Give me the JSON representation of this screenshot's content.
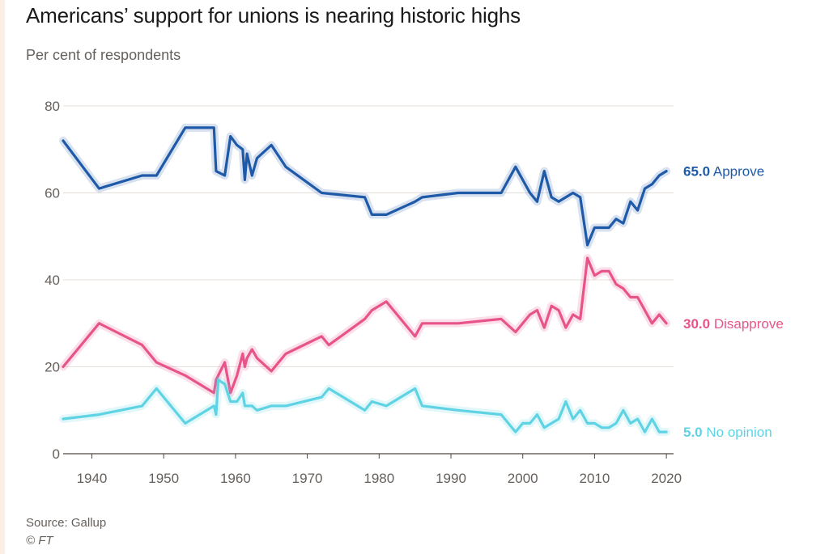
{
  "title": "Americans’ support for unions is nearing historic highs",
  "subtitle": "Per cent of respondents",
  "footer": {
    "source": "Source: Gallup",
    "credit": "© FT"
  },
  "chart_data": {
    "type": "line",
    "title": "Americans’ support for unions is nearing historic highs",
    "ylabel": "Per cent of respondents",
    "xlabel": "",
    "xlim": [
      1936,
      2021
    ],
    "ylim": [
      0,
      80
    ],
    "grid": true,
    "legend": "end-of-line labels (right)",
    "x_ticks": [
      1940,
      1950,
      1960,
      1970,
      1980,
      1990,
      2000,
      2010,
      2020
    ],
    "x_tick_labels": [
      "1940",
      "1950",
      "1960",
      "1970",
      "1980",
      "1990",
      "2000",
      "2010",
      "2020"
    ],
    "y_ticks": [
      0,
      20,
      40,
      60,
      80
    ],
    "y_tick_labels": [
      "0",
      "20",
      "40",
      "60",
      "80"
    ],
    "series": [
      {
        "name": "Approve",
        "end_value": "65.0",
        "color": "#1f5aa8",
        "points": [
          [
            1936,
            72
          ],
          [
            1941,
            61
          ],
          [
            1947,
            64
          ],
          [
            1949,
            64
          ],
          [
            1953,
            75
          ],
          [
            1957,
            75
          ],
          [
            1957.3,
            65
          ],
          [
            1958.5,
            64
          ],
          [
            1959.3,
            73
          ],
          [
            1960.2,
            71
          ],
          [
            1961,
            70
          ],
          [
            1961.3,
            63
          ],
          [
            1961.6,
            69
          ],
          [
            1962.3,
            64
          ],
          [
            1963,
            68
          ],
          [
            1965,
            71
          ],
          [
            1967,
            66
          ],
          [
            1972,
            60
          ],
          [
            1978,
            59
          ],
          [
            1979,
            55
          ],
          [
            1981,
            55
          ],
          [
            1985,
            58
          ],
          [
            1986,
            59
          ],
          [
            1991,
            60
          ],
          [
            1997,
            60
          ],
          [
            1999,
            66
          ],
          [
            2001,
            60
          ],
          [
            2002,
            58
          ],
          [
            2003,
            65
          ],
          [
            2004,
            59
          ],
          [
            2005,
            58
          ],
          [
            2006,
            59
          ],
          [
            2007,
            60
          ],
          [
            2008,
            59
          ],
          [
            2009,
            48
          ],
          [
            2010,
            52
          ],
          [
            2011,
            52
          ],
          [
            2012,
            52
          ],
          [
            2013,
            54
          ],
          [
            2014,
            53
          ],
          [
            2015,
            58
          ],
          [
            2016,
            56
          ],
          [
            2017,
            61
          ],
          [
            2018,
            62
          ],
          [
            2019,
            64
          ],
          [
            2020,
            65
          ]
        ]
      },
      {
        "name": "Disapprove",
        "end_value": "30.0",
        "color": "#e8548a",
        "points": [
          [
            1936,
            20
          ],
          [
            1941,
            30
          ],
          [
            1947,
            25
          ],
          [
            1949,
            21
          ],
          [
            1953,
            18
          ],
          [
            1957,
            14
          ],
          [
            1957.3,
            17
          ],
          [
            1958.5,
            21
          ],
          [
            1959.3,
            14
          ],
          [
            1960.2,
            18
          ],
          [
            1961,
            23
          ],
          [
            1961.3,
            20
          ],
          [
            1961.6,
            22
          ],
          [
            1962.3,
            24
          ],
          [
            1963,
            22
          ],
          [
            1965,
            19
          ],
          [
            1967,
            23
          ],
          [
            1972,
            27
          ],
          [
            1973,
            25
          ],
          [
            1978,
            31
          ],
          [
            1979,
            33
          ],
          [
            1981,
            35
          ],
          [
            1985,
            27
          ],
          [
            1986,
            30
          ],
          [
            1991,
            30
          ],
          [
            1997,
            31
          ],
          [
            1999,
            28
          ],
          [
            2001,
            32
          ],
          [
            2002,
            33
          ],
          [
            2003,
            29
          ],
          [
            2004,
            34
          ],
          [
            2005,
            33
          ],
          [
            2006,
            29
          ],
          [
            2007,
            32
          ],
          [
            2008,
            31
          ],
          [
            2009,
            45
          ],
          [
            2010,
            41
          ],
          [
            2011,
            42
          ],
          [
            2012,
            42
          ],
          [
            2013,
            39
          ],
          [
            2014,
            38
          ],
          [
            2015,
            36
          ],
          [
            2016,
            36
          ],
          [
            2017,
            33
          ],
          [
            2018,
            30
          ],
          [
            2019,
            32
          ],
          [
            2020,
            30
          ]
        ]
      },
      {
        "name": "No opinion",
        "end_value": "5.0",
        "color": "#5fd3e4",
        "points": [
          [
            1936,
            8
          ],
          [
            1941,
            9
          ],
          [
            1947,
            11
          ],
          [
            1949,
            15
          ],
          [
            1953,
            7
          ],
          [
            1957,
            11
          ],
          [
            1957.3,
            9
          ],
          [
            1957.6,
            17
          ],
          [
            1958.5,
            16
          ],
          [
            1959.3,
            12
          ],
          [
            1960.2,
            12
          ],
          [
            1961,
            14
          ],
          [
            1961.3,
            11
          ],
          [
            1961.6,
            11
          ],
          [
            1962.3,
            11
          ],
          [
            1963,
            10
          ],
          [
            1965,
            11
          ],
          [
            1967,
            11
          ],
          [
            1972,
            13
          ],
          [
            1973,
            15
          ],
          [
            1978,
            10
          ],
          [
            1979,
            12
          ],
          [
            1981,
            11
          ],
          [
            1985,
            15
          ],
          [
            1986,
            11
          ],
          [
            1991,
            10
          ],
          [
            1997,
            9
          ],
          [
            1999,
            5
          ],
          [
            2000,
            7
          ],
          [
            2001,
            7
          ],
          [
            2002,
            9
          ],
          [
            2003,
            6
          ],
          [
            2004,
            7
          ],
          [
            2005,
            8
          ],
          [
            2006,
            12
          ],
          [
            2007,
            8
          ],
          [
            2008,
            10
          ],
          [
            2009,
            7
          ],
          [
            2010,
            7
          ],
          [
            2011,
            6
          ],
          [
            2012,
            6
          ],
          [
            2013,
            7
          ],
          [
            2014,
            10
          ],
          [
            2015,
            7
          ],
          [
            2016,
            8
          ],
          [
            2017,
            5
          ],
          [
            2018,
            8
          ],
          [
            2019,
            5
          ],
          [
            2020,
            5
          ]
        ]
      }
    ]
  }
}
